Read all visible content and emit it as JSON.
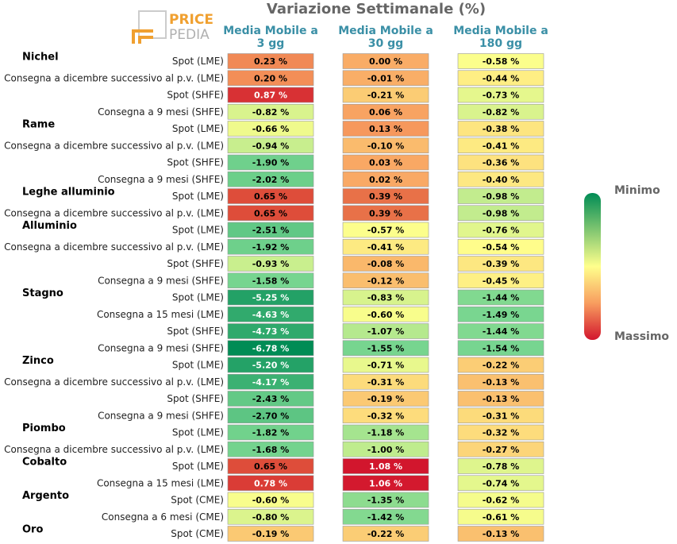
{
  "chart_data": {
    "type": "heatmap",
    "title": "Variazione Settimanale (%)",
    "columns": [
      "Media Mobile a 3 gg",
      "Media Mobile a 30 gg",
      "Media Mobile a 180 gg"
    ],
    "column_header_lines": [
      [
        "Media Mobile a",
        "3 gg"
      ],
      [
        "Media Mobile a",
        "30 gg"
      ],
      [
        "Media Mobile a",
        "180 gg"
      ]
    ],
    "groups": [
      {
        "name": "Nichel",
        "rows": [
          {
            "label": "Spot (LME)",
            "values": [
              0.23,
              0.0,
              -0.58
            ]
          },
          {
            "label": "Consegna a dicembre successivo al p.v. (LME)",
            "values": [
              0.2,
              -0.01,
              -0.44
            ]
          },
          {
            "label": "Spot (SHFE)",
            "values": [
              0.87,
              -0.21,
              -0.73
            ]
          },
          {
            "label": "Consegna a 9 mesi (SHFE)",
            "values": [
              -0.82,
              0.06,
              -0.82
            ]
          }
        ]
      },
      {
        "name": "Rame",
        "rows": [
          {
            "label": "Spot (LME)",
            "values": [
              -0.66,
              0.13,
              -0.38
            ]
          },
          {
            "label": "Consegna a dicembre successivo al p.v. (LME)",
            "values": [
              -0.94,
              -0.1,
              -0.41
            ]
          },
          {
            "label": "Spot (SHFE)",
            "values": [
              -1.9,
              0.03,
              -0.36
            ]
          },
          {
            "label": "Consegna a 9 mesi (SHFE)",
            "values": [
              -2.02,
              0.02,
              -0.4
            ]
          }
        ]
      },
      {
        "name": "Leghe alluminio",
        "rows": [
          {
            "label": "Spot (LME)",
            "values": [
              0.65,
              0.39,
              -0.98
            ]
          },
          {
            "label": "Consegna a dicembre successivo al p.v. (LME)",
            "values": [
              0.65,
              0.39,
              -0.98
            ]
          }
        ]
      },
      {
        "name": "Alluminio",
        "rows": [
          {
            "label": "Spot (LME)",
            "values": [
              -2.51,
              -0.57,
              -0.76
            ]
          },
          {
            "label": "Consegna a dicembre successivo al p.v. (LME)",
            "values": [
              -1.92,
              -0.41,
              -0.54
            ]
          },
          {
            "label": "Spot (SHFE)",
            "values": [
              -0.93,
              -0.08,
              -0.39
            ]
          },
          {
            "label": "Consegna a 9 mesi (SHFE)",
            "values": [
              -1.58,
              -0.12,
              -0.45
            ]
          }
        ]
      },
      {
        "name": "Stagno",
        "rows": [
          {
            "label": "Spot (LME)",
            "values": [
              -5.25,
              -0.83,
              -1.44
            ]
          },
          {
            "label": "Consegna a 15 mesi (LME)",
            "values": [
              -4.63,
              -0.6,
              -1.49
            ]
          },
          {
            "label": "Spot (SHFE)",
            "values": [
              -4.73,
              -1.07,
              -1.44
            ]
          },
          {
            "label": "Consegna a 9 mesi (SHFE)",
            "values": [
              -6.78,
              -1.55,
              -1.54
            ]
          }
        ]
      },
      {
        "name": "Zinco",
        "rows": [
          {
            "label": "Spot (LME)",
            "values": [
              -5.2,
              -0.71,
              -0.22
            ]
          },
          {
            "label": "Consegna a dicembre successivo al p.v. (LME)",
            "values": [
              -4.17,
              -0.31,
              -0.13
            ]
          },
          {
            "label": "Spot (SHFE)",
            "values": [
              -2.43,
              -0.19,
              -0.13
            ]
          },
          {
            "label": "Consegna a 9 mesi (SHFE)",
            "values": [
              -2.7,
              -0.32,
              -0.31
            ]
          }
        ]
      },
      {
        "name": "Piombo",
        "rows": [
          {
            "label": "Spot (LME)",
            "values": [
              -1.82,
              -1.18,
              -0.32
            ]
          },
          {
            "label": "Consegna a dicembre successivo al p.v. (LME)",
            "values": [
              -1.68,
              -1.0,
              -0.27
            ]
          }
        ]
      },
      {
        "name": "Cobalto",
        "rows": [
          {
            "label": "Spot (LME)",
            "values": [
              0.65,
              1.08,
              -0.78
            ]
          },
          {
            "label": "Consegna a 15 mesi (LME)",
            "values": [
              0.78,
              1.06,
              -0.74
            ]
          }
        ]
      },
      {
        "name": "Argento",
        "rows": [
          {
            "label": "Spot (CME)",
            "values": [
              -0.6,
              -1.35,
              -0.62
            ]
          },
          {
            "label": "Consegna a 6 mesi (CME)",
            "values": [
              -0.8,
              -1.42,
              -0.61
            ]
          }
        ]
      },
      {
        "name": "Oro",
        "rows": [
          {
            "label": "Spot (CME)",
            "values": [
              -0.19,
              -0.22,
              -0.13
            ]
          }
        ]
      }
    ],
    "value_suffix": " %",
    "legend": {
      "min_label": "Minimo",
      "max_label": "Massimo",
      "placement": "right"
    },
    "colors": {
      "scale_min": "#008c55",
      "scale_mid": "#ffff8c",
      "scale_orange": "#f89d5f",
      "scale_max": "#d2162d",
      "header": "#3a8fa6",
      "title": "#666666"
    }
  },
  "logo": {
    "word1": "PRICE",
    "word2": "PEDIA"
  }
}
